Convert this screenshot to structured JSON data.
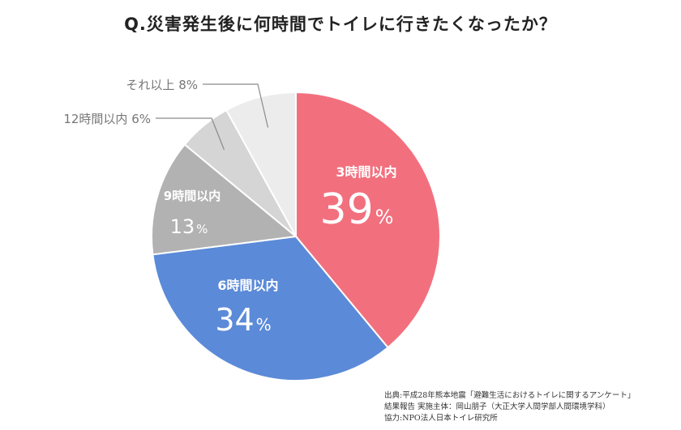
{
  "chart_data": {
    "type": "pie",
    "title": "Q.災害発生後に何時間でトイレに行きたくなったか？",
    "unit": "%",
    "categories": [
      "3時間以内",
      "6時間以内",
      "9時間以内",
      "12時間以内",
      "それ以上"
    ],
    "values": [
      39,
      34,
      13,
      6,
      8
    ],
    "colors": [
      "#f2707e",
      "#5b8ad8",
      "#b2b2b2",
      "#d5d5d5",
      "#ececec"
    ],
    "label_placement": [
      "inside",
      "inside",
      "inside",
      "outside-left",
      "outside-left"
    ]
  },
  "source": [
    "出典:平成28年熊本地震「避難生活におけるトイレに関するアンケート」",
    "結果報告 実施主体：岡山朋子（大正大学人間学部人間環境学科）",
    "協力:NPO法人日本トイレ研究所"
  ]
}
